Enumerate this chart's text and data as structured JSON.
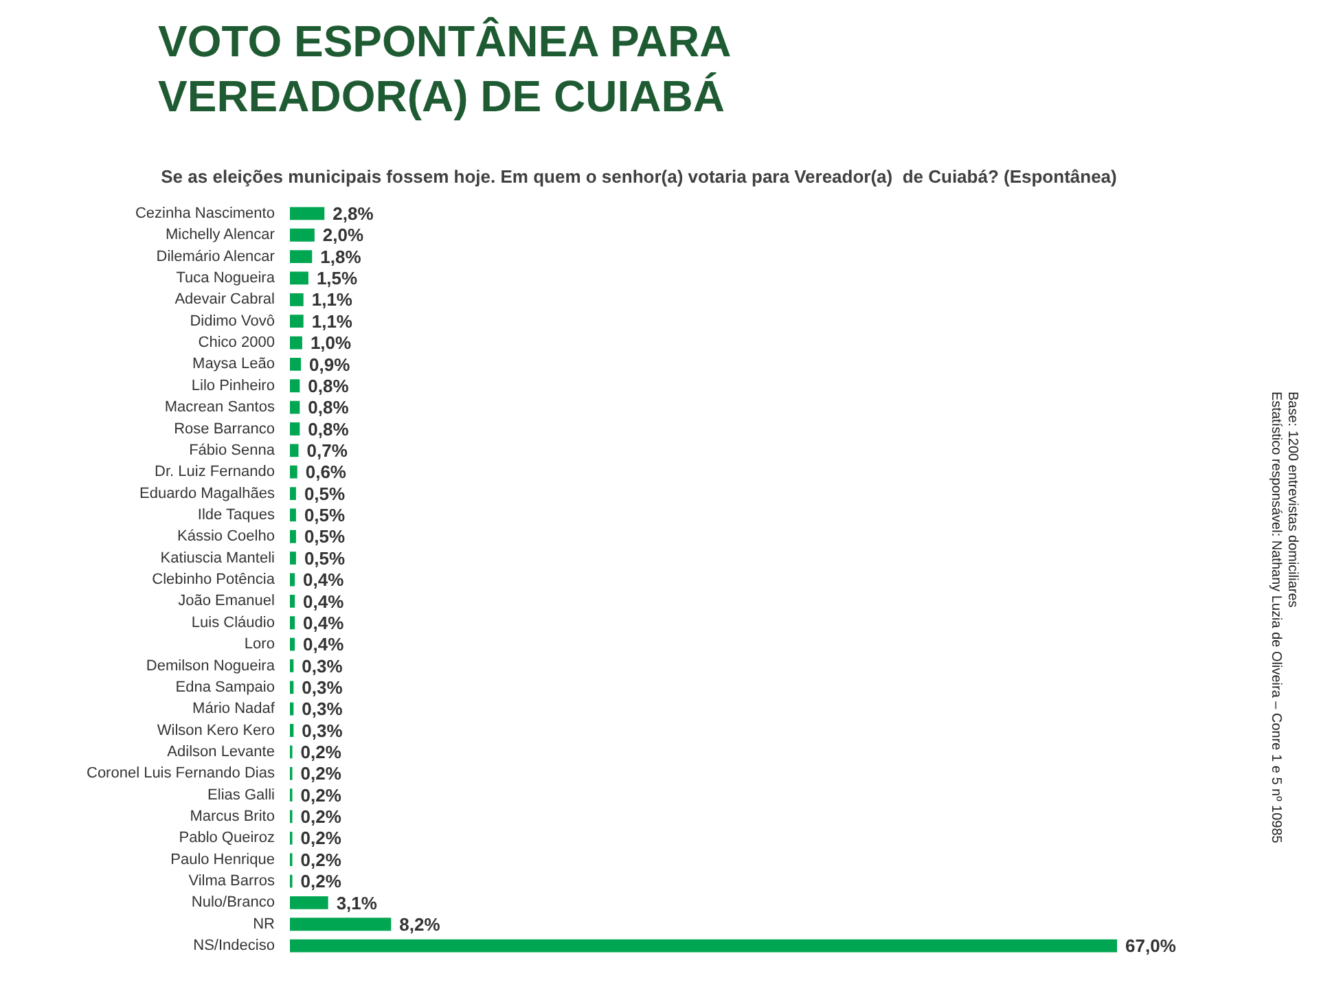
{
  "chart_data": {
    "type": "bar",
    "orientation": "horizontal",
    "title": "VOTO ESPONTÂNEA PARA\nVEREADOR(A) DE CUIABÁ",
    "subtitle": "Se as eleições municipais fossem hoje. Em quem o senhor(a) votaria para Vereador(a)  de Cuiabá? (Espontânea)",
    "annotations": [
      "Base: 1200 entrevistas domiciliares",
      "Estatístico responsável: Nathany Luzia de Oliveira – Conre 1 e 5 nº 10985"
    ],
    "categories": [
      "Cezinha Nascimento",
      "Michelly Alencar",
      "Dilemário Alencar",
      "Tuca Nogueira",
      "Adevair Cabral",
      "Didimo Vovô",
      "Chico 2000",
      "Maysa Leão",
      "Lilo Pinheiro",
      "Macrean Santos",
      "Rose Barranco",
      "Fábio Senna",
      "Dr. Luiz Fernando",
      "Eduardo Magalhães",
      "Ilde Taques",
      "Kássio Coelho",
      "Katiuscia Manteli",
      "Clebinho Potência",
      "João Emanuel",
      "Luis Cláudio",
      "Loro",
      "Demilson Nogueira",
      "Edna Sampaio",
      "Mário Nadaf",
      "Wilson Kero Kero",
      "Adilson Levante",
      "Coronel Luis Fernando Dias",
      "Elias Galli",
      "Marcus Brito",
      "Pablo Queiroz",
      "Paulo Henrique",
      "Vilma Barros",
      "Nulo/Branco",
      "NR",
      "NS/Indeciso"
    ],
    "values": [
      2.8,
      2.0,
      1.8,
      1.5,
      1.1,
      1.1,
      1.0,
      0.9,
      0.8,
      0.8,
      0.8,
      0.7,
      0.6,
      0.5,
      0.5,
      0.5,
      0.5,
      0.4,
      0.4,
      0.4,
      0.4,
      0.3,
      0.3,
      0.3,
      0.3,
      0.2,
      0.2,
      0.2,
      0.2,
      0.2,
      0.2,
      0.2,
      3.1,
      8.2,
      67.0
    ],
    "value_labels": [
      "2,8%",
      "2,0%",
      "1,8%",
      "1,5%",
      "1,1%",
      "1,1%",
      "1,0%",
      "0,9%",
      "0,8%",
      "0,8%",
      "0,8%",
      "0,7%",
      "0,6%",
      "0,5%",
      "0,5%",
      "0,5%",
      "0,5%",
      "0,4%",
      "0,4%",
      "0,4%",
      "0,4%",
      "0,3%",
      "0,3%",
      "0,3%",
      "0,3%",
      "0,2%",
      "0,2%",
      "0,2%",
      "0,2%",
      "0,2%",
      "0,2%",
      "0,2%",
      "3,1%",
      "8,2%",
      "67,0%"
    ],
    "color": "#00a651",
    "legend": false
  }
}
